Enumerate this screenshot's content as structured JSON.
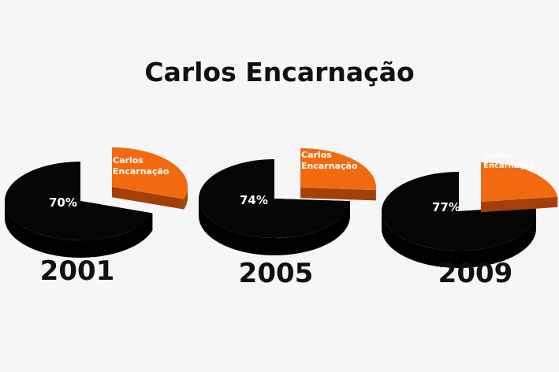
{
  "title": "Carlos Encarnação",
  "colors": {
    "main_top": "#050505",
    "main_side": "#000000",
    "slice_top": "#f26a10",
    "slice_side": "#a53f0a",
    "background": "#f6f6f6"
  },
  "chart_data": [
    {
      "type": "pie",
      "year": "2001",
      "slices": [
        {
          "label": "",
          "value": 70,
          "display": "70%"
        },
        {
          "label": "Carlos Encarnação",
          "value": 30,
          "display": ""
        }
      ]
    },
    {
      "type": "pie",
      "year": "2005",
      "slices": [
        {
          "label": "",
          "value": 74,
          "display": "74%"
        },
        {
          "label": "Carlos Encarnação",
          "value": 26,
          "display": ""
        }
      ]
    },
    {
      "type": "pie",
      "year": "2009",
      "slices": [
        {
          "label": "",
          "value": 77,
          "display": "77%"
        },
        {
          "label": "Carlos Encarnação",
          "value": 23,
          "display": ""
        }
      ]
    }
  ]
}
